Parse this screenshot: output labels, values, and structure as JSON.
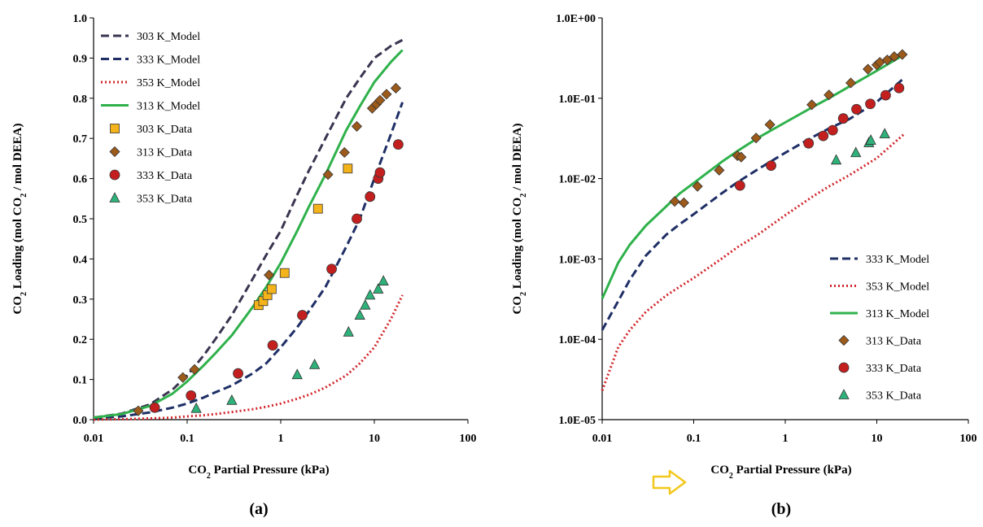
{
  "colors": {
    "m303": "#3b3450",
    "m333": "#1f2f66",
    "m353": "#d1262b",
    "m313": "#2fb14b",
    "d303": "#f4b31a",
    "d313": "#9c5a1b",
    "d333": "#c41f1f",
    "d353": "#2fb27a",
    "arrow": "#f2c81c"
  },
  "chart_data": [
    {
      "type": "scatter",
      "panel_label": "(a)",
      "xlabel": {
        "pre": "CO",
        "sub": "2",
        "post": " Partial Pressure (kPa)"
      },
      "ylabel": {
        "pre": "CO",
        "sub1": "2",
        "mid": " Loading (mol CO",
        "sub2": "2",
        "post": " / mol DEEA)"
      },
      "x_scale": "log",
      "xlim": [
        0.01,
        100
      ],
      "ylim": [
        0,
        1.0
      ],
      "x_ticks": [
        0.01,
        0.1,
        1,
        10,
        100
      ],
      "x_tick_labels": [
        "0.01",
        "0.1",
        "1",
        "10",
        "100"
      ],
      "y_ticks": [
        0,
        0.1,
        0.2,
        0.3,
        0.4,
        0.5,
        0.6,
        0.7,
        0.8,
        0.9,
        1.0
      ],
      "y_tick_labels": [
        "0.0",
        "0.1",
        "0.2",
        "0.3",
        "0.4",
        "0.5",
        "0.6",
        "0.7",
        "0.8",
        "0.9",
        "1.0"
      ],
      "legend_position": "top-left",
      "series": [
        {
          "name": "303 K_Model",
          "kind": "line",
          "style": "dashed",
          "color_key": "m303",
          "x": [
            0.01,
            0.02,
            0.04,
            0.07,
            0.1,
            0.15,
            0.2,
            0.3,
            0.5,
            0.7,
            1,
            1.5,
            2,
            3,
            5,
            7,
            10,
            15,
            20
          ],
          "y": [
            0.005,
            0.015,
            0.038,
            0.075,
            0.11,
            0.16,
            0.2,
            0.26,
            0.35,
            0.41,
            0.47,
            0.56,
            0.62,
            0.7,
            0.8,
            0.85,
            0.9,
            0.93,
            0.945
          ]
        },
        {
          "name": "333 K_Model",
          "kind": "line",
          "style": "dashed",
          "color_key": "m333",
          "x": [
            0.01,
            0.02,
            0.04,
            0.07,
            0.1,
            0.15,
            0.2,
            0.3,
            0.5,
            0.7,
            1,
            1.5,
            2,
            3,
            5,
            7,
            10,
            15,
            20
          ],
          "y": [
            0.003,
            0.008,
            0.018,
            0.03,
            0.04,
            0.055,
            0.068,
            0.085,
            0.115,
            0.14,
            0.18,
            0.23,
            0.27,
            0.33,
            0.43,
            0.5,
            0.6,
            0.71,
            0.79
          ]
        },
        {
          "name": "353 K_Model",
          "kind": "line",
          "style": "dotted",
          "color_key": "m353",
          "x": [
            0.01,
            0.02,
            0.04,
            0.07,
            0.1,
            0.15,
            0.2,
            0.3,
            0.5,
            0.7,
            1,
            1.5,
            2,
            3,
            5,
            7,
            10,
            15,
            20
          ],
          "y": [
            0.0003,
            0.0012,
            0.003,
            0.005,
            0.008,
            0.011,
            0.014,
            0.019,
            0.026,
            0.032,
            0.04,
            0.052,
            0.062,
            0.08,
            0.11,
            0.14,
            0.18,
            0.25,
            0.31
          ]
        },
        {
          "name": "313 K_Model",
          "kind": "line",
          "style": "solid",
          "color_key": "m313",
          "x": [
            0.01,
            0.02,
            0.04,
            0.07,
            0.1,
            0.15,
            0.2,
            0.3,
            0.5,
            0.7,
            1,
            1.5,
            2,
            3,
            5,
            7,
            10,
            15,
            20
          ],
          "y": [
            0.005,
            0.014,
            0.034,
            0.065,
            0.095,
            0.135,
            0.165,
            0.21,
            0.28,
            0.33,
            0.39,
            0.47,
            0.53,
            0.61,
            0.72,
            0.78,
            0.84,
            0.89,
            0.92
          ]
        },
        {
          "name": "303 K_Data",
          "kind": "points",
          "marker": "square",
          "color_key": "d303",
          "x": [
            0.58,
            0.65,
            0.72,
            0.8,
            1.1,
            2.5,
            5.2
          ],
          "y": [
            0.285,
            0.295,
            0.31,
            0.325,
            0.365,
            0.525,
            0.625
          ]
        },
        {
          "name": "313 K_Data",
          "kind": "points",
          "marker": "diamond",
          "color_key": "d313",
          "x": [
            0.03,
            0.09,
            0.12,
            0.75,
            3.2,
            4.8,
            6.5,
            9.5,
            10.5,
            11.5,
            13.5,
            17.0
          ],
          "y": [
            0.022,
            0.105,
            0.125,
            0.36,
            0.61,
            0.665,
            0.73,
            0.775,
            0.785,
            0.795,
            0.81,
            0.825
          ]
        },
        {
          "name": "333 K_Data",
          "kind": "points",
          "marker": "circle",
          "color_key": "d333",
          "x": [
            0.045,
            0.11,
            0.35,
            0.82,
            1.7,
            3.5,
            6.5,
            9.0,
            11.0,
            11.5,
            18.0
          ],
          "y": [
            0.03,
            0.06,
            0.115,
            0.185,
            0.26,
            0.375,
            0.5,
            0.555,
            0.6,
            0.615,
            0.685
          ]
        },
        {
          "name": "353 K_Data",
          "kind": "points",
          "marker": "triangle",
          "color_key": "d353",
          "x": [
            0.125,
            0.3,
            1.5,
            2.3,
            5.3,
            7.0,
            8.0,
            9.0,
            11.0,
            12.5
          ],
          "y": [
            0.028,
            0.048,
            0.112,
            0.137,
            0.218,
            0.26,
            0.285,
            0.31,
            0.325,
            0.345
          ]
        }
      ]
    },
    {
      "type": "scatter",
      "panel_label": "(b)",
      "xlabel": {
        "pre": "CO",
        "sub": "2",
        "post": " Partial Pressure (kPa)"
      },
      "ylabel": {
        "pre": "CO",
        "sub1": "2",
        "mid": " Loading (mol CO",
        "sub2": "2",
        "post": " / mol DEEA)"
      },
      "x_scale": "log",
      "y_scale": "log",
      "xlim": [
        0.01,
        100
      ],
      "ylim": [
        1e-05,
        1.0
      ],
      "x_ticks": [
        0.01,
        0.1,
        1,
        10,
        100
      ],
      "x_tick_labels": [
        "0.01",
        "0.1",
        "1",
        "10",
        "100"
      ],
      "y_ticks": [
        1e-05,
        0.0001,
        0.001,
        0.01,
        0.1,
        1.0
      ],
      "y_tick_labels": [
        "1.0E-05",
        "1.0E-04",
        "1.0E-03",
        "1.0E-02",
        "1.0E-01",
        "1.0E+00"
      ],
      "legend_position": "bottom-right",
      "series": [
        {
          "name": "333 K_Model",
          "kind": "line",
          "style": "dashed",
          "color_key": "m333",
          "x": [
            0.01,
            0.015,
            0.02,
            0.03,
            0.05,
            0.07,
            0.1,
            0.2,
            0.3,
            0.5,
            1,
            2,
            3,
            5,
            10,
            20
          ],
          "y": [
            0.00013,
            0.0003,
            0.00055,
            0.0011,
            0.002,
            0.0027,
            0.0036,
            0.0065,
            0.009,
            0.013,
            0.021,
            0.033,
            0.042,
            0.055,
            0.09,
            0.18
          ]
        },
        {
          "name": "353 K_Model",
          "kind": "line",
          "style": "dotted",
          "color_key": "m353",
          "x": [
            0.01,
            0.015,
            0.02,
            0.03,
            0.05,
            0.07,
            0.1,
            0.2,
            0.3,
            0.5,
            1,
            2,
            3,
            5,
            10,
            20
          ],
          "y": [
            2.3e-05,
            8e-05,
            0.00013,
            0.00022,
            0.00035,
            0.00045,
            0.00058,
            0.001,
            0.0014,
            0.002,
            0.0035,
            0.006,
            0.008,
            0.011,
            0.018,
            0.036
          ]
        },
        {
          "name": "313 K_Model",
          "kind": "line",
          "style": "solid",
          "color_key": "m313",
          "x": [
            0.01,
            0.015,
            0.02,
            0.03,
            0.05,
            0.07,
            0.1,
            0.2,
            0.3,
            0.5,
            1,
            2,
            3,
            5,
            10,
            20
          ],
          "y": [
            0.00032,
            0.0009,
            0.0015,
            0.0026,
            0.0045,
            0.0065,
            0.0088,
            0.016,
            0.022,
            0.032,
            0.05,
            0.078,
            0.1,
            0.14,
            0.22,
            0.35
          ]
        },
        {
          "name": "313 K_Data",
          "kind": "points",
          "marker": "diamond",
          "color_key": "d313",
          "x": [
            0.062,
            0.078,
            0.11,
            0.19,
            0.3,
            0.33,
            0.48,
            0.68,
            1.95,
            3.0,
            5.2,
            8.0,
            10.0,
            10.8,
            13.0,
            15.5,
            19.0
          ],
          "y": [
            0.0052,
            0.005,
            0.008,
            0.0127,
            0.0193,
            0.0185,
            0.032,
            0.047,
            0.083,
            0.11,
            0.155,
            0.23,
            0.26,
            0.28,
            0.3,
            0.33,
            0.35
          ]
        },
        {
          "name": "333 K_Data",
          "kind": "points",
          "marker": "circle",
          "color_key": "d333",
          "x": [
            0.32,
            0.7,
            1.8,
            2.6,
            3.3,
            4.3,
            6.0,
            8.5,
            12.5,
            17.5
          ],
          "y": [
            0.0082,
            0.0145,
            0.0275,
            0.034,
            0.04,
            0.056,
            0.073,
            0.085,
            0.109,
            0.134
          ]
        },
        {
          "name": "353 K_Data",
          "kind": "points",
          "marker": "triangle",
          "color_key": "d353",
          "x": [
            3.6,
            5.9,
            8.2,
            8.6,
            12.2
          ],
          "y": [
            0.017,
            0.021,
            0.028,
            0.03,
            0.036
          ]
        }
      ]
    }
  ]
}
